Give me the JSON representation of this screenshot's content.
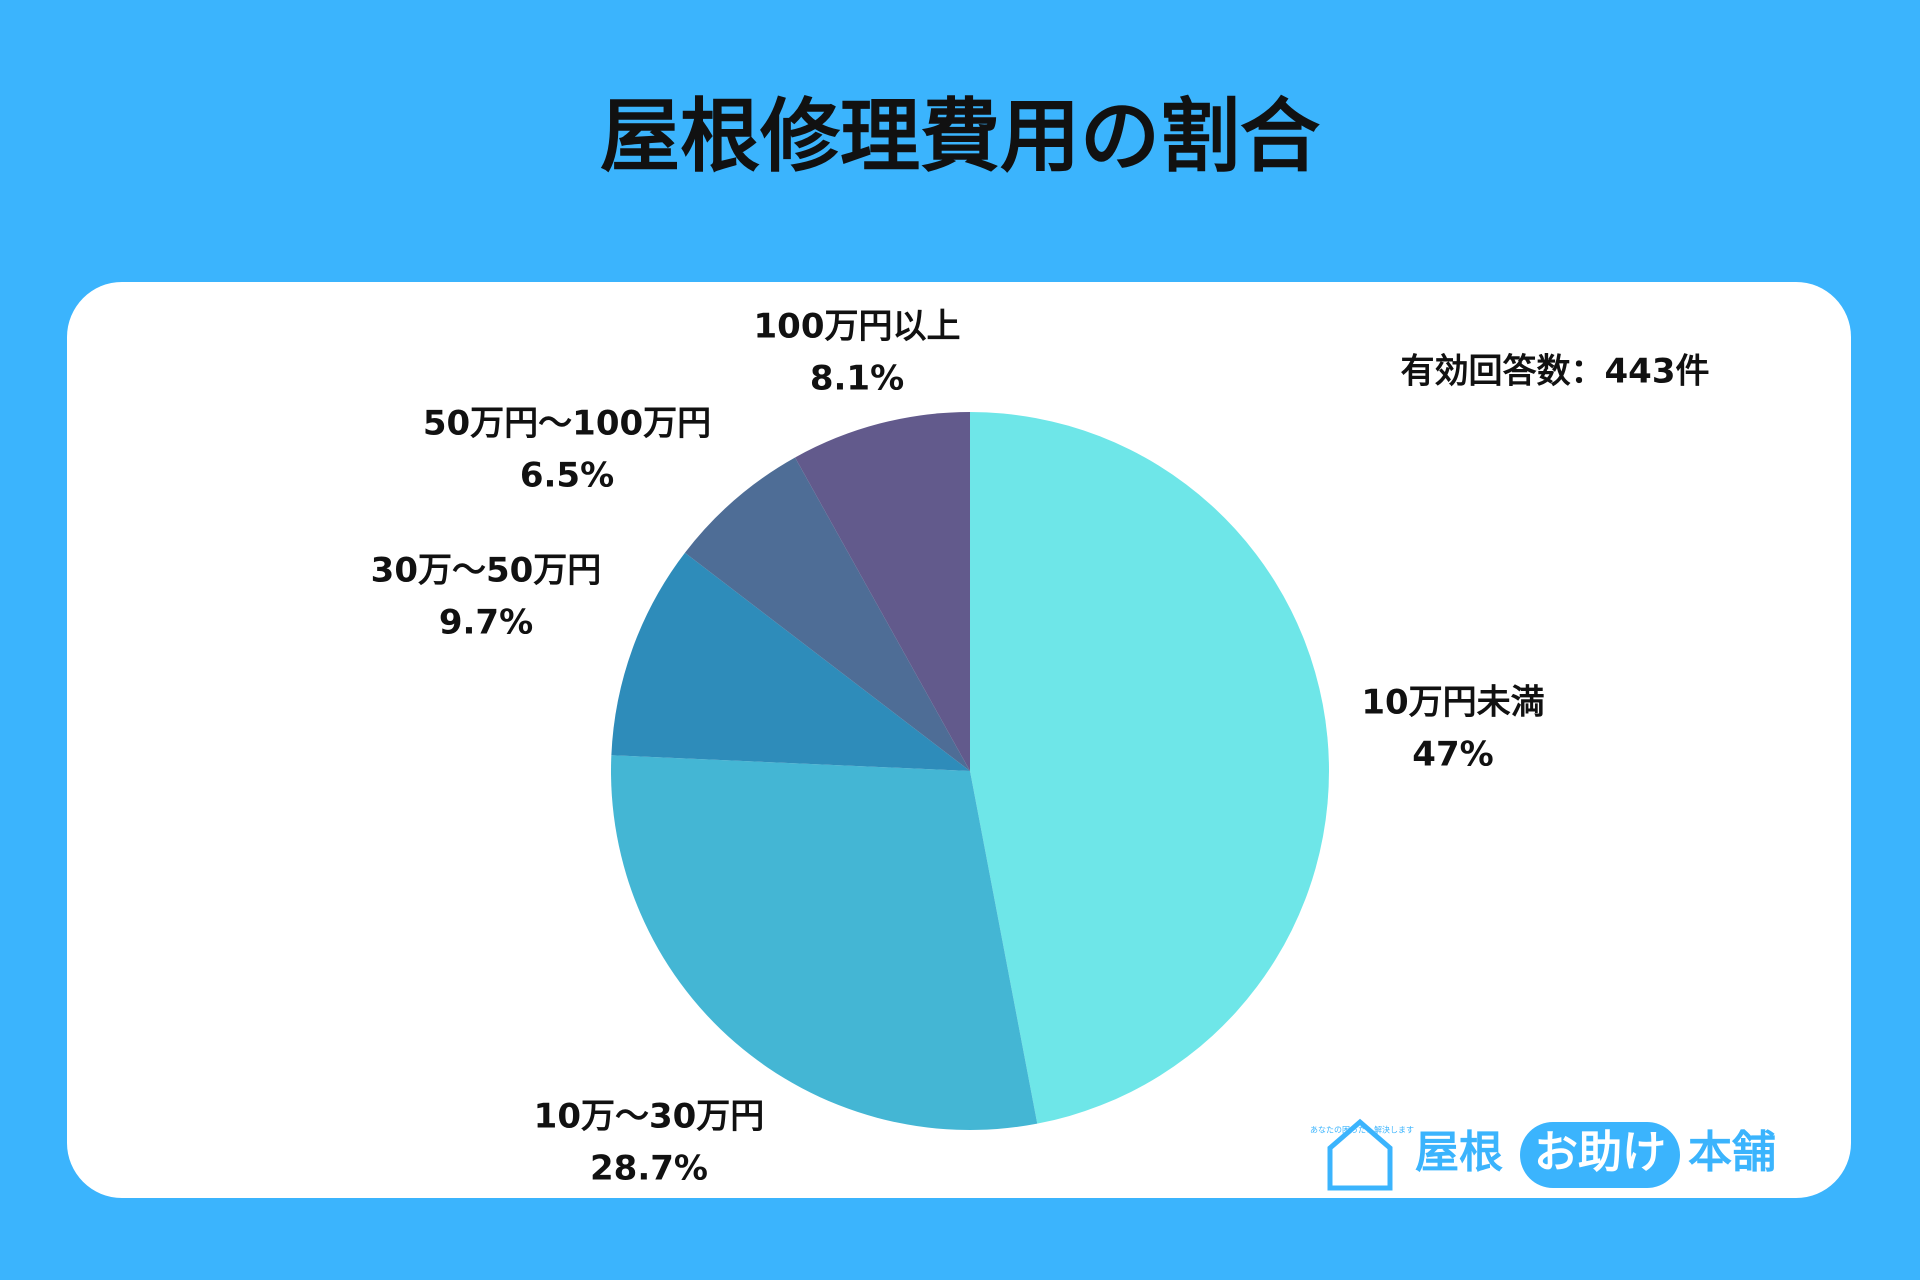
{
  "chart_data": {
    "type": "pie",
    "title": "屋根修理費用の割合",
    "categories": [
      "10万円未満",
      "10万〜30万円",
      "30万〜50万円",
      "50万円〜100万円",
      "100万円以上"
    ],
    "values": [
      47,
      28.7,
      9.7,
      6.5,
      8.1
    ],
    "value_labels": [
      "47%",
      "28.7%",
      "9.7%",
      "6.5%",
      "8.1%"
    ],
    "colors": [
      "#6ee6e8",
      "#44b6d4",
      "#2e8cba",
      "#4e6d96",
      "#625a8c"
    ],
    "annotation": "有効回答数：443件"
  },
  "logo": {
    "tagline": "あなたの困った！解決します",
    "parts": [
      "屋根",
      "お助け",
      "本舗"
    ]
  }
}
